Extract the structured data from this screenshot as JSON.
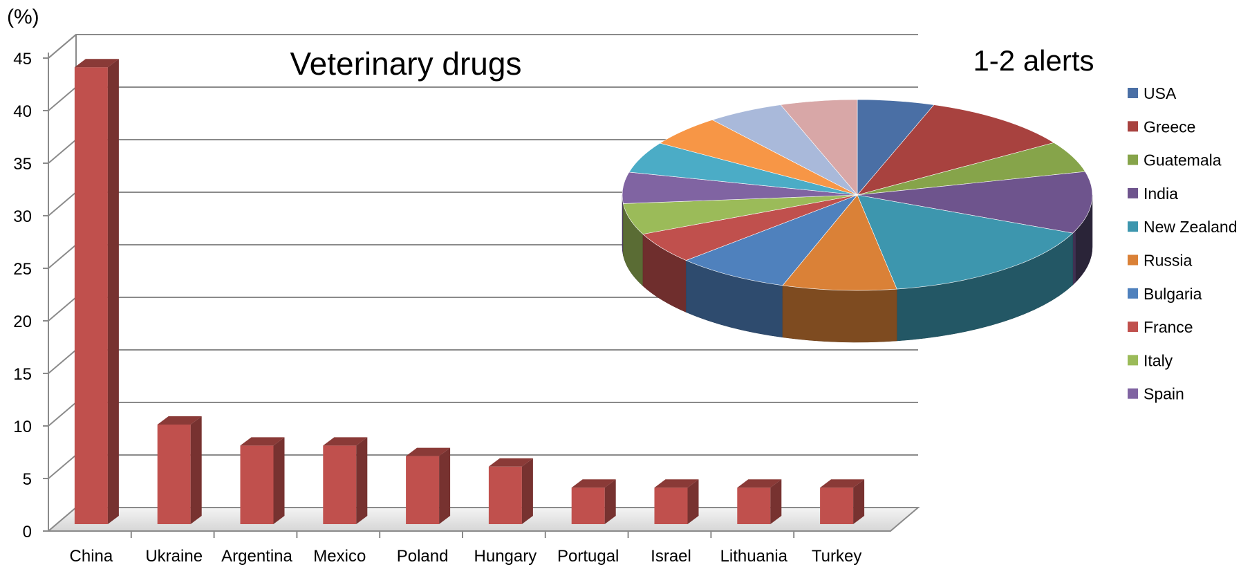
{
  "chart_data": [
    {
      "type": "bar",
      "title": "Veterinary drugs",
      "ylabel": "(%)",
      "xlabel": "",
      "ylim": [
        0,
        45
      ],
      "yticks": [
        0,
        5,
        10,
        15,
        20,
        25,
        30,
        35,
        40,
        45
      ],
      "categories": [
        "China",
        "Ukraine",
        "Argentina",
        "Mexico",
        "Poland",
        "Hungary",
        "Portugal",
        "Israel",
        "Lithuania",
        "Turkey"
      ],
      "values": [
        44,
        10,
        8,
        8,
        7,
        6,
        4,
        4,
        4,
        4
      ],
      "grid": true,
      "bar_color": "#c0504d"
    },
    {
      "type": "pie",
      "title": "1-2 alerts",
      "legend_position": "right",
      "slices": [
        {
          "label": "USA",
          "value": 5.6,
          "color": "#4a6fa5"
        },
        {
          "label": "Greece",
          "value": 11.1,
          "color": "#a8423f"
        },
        {
          "label": "Guatemala",
          "value": 5.6,
          "color": "#86a44a"
        },
        {
          "label": "India",
          "value": 11.1,
          "color": "#6e548d"
        },
        {
          "label": "New Zealand",
          "value": 16.7,
          "color": "#3d96ae"
        },
        {
          "label": "Russia",
          "value": 8.3,
          "color": "#da8137"
        },
        {
          "label": "Bulgaria",
          "value": 8.3,
          "color": "#4f81bd"
        },
        {
          "label": "France",
          "value": 5.6,
          "color": "#c0504d"
        },
        {
          "label": "Italy",
          "value": 5.6,
          "color": "#9bbb59"
        },
        {
          "label": "Spain",
          "value": 5.6,
          "color": "#8064a2"
        },
        {
          "label": "",
          "value": 5.6,
          "color": "#4bacc6"
        },
        {
          "label": "",
          "value": 5.6,
          "color": "#f79646"
        },
        {
          "label": "",
          "value": 5.6,
          "color": "#a9b9da"
        },
        {
          "label": "",
          "value": 5.6,
          "color": "#d8a7a7"
        }
      ]
    }
  ]
}
